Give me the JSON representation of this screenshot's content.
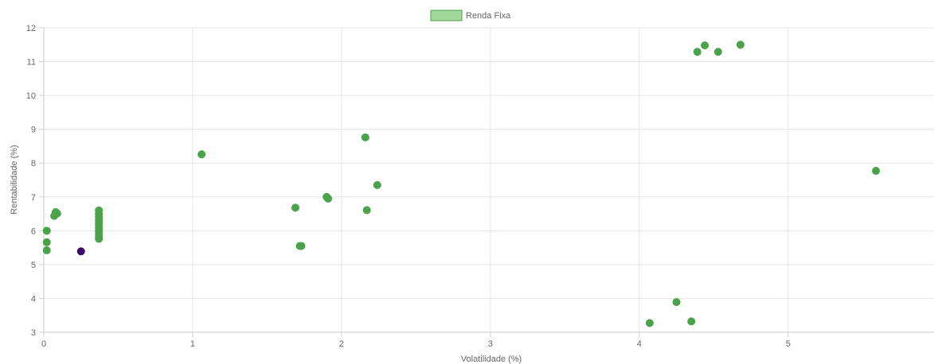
{
  "chart_data": {
    "type": "scatter",
    "xlabel": "Volatilidade (%)",
    "ylabel": "Rentabilidade (%)",
    "xlim": [
      0,
      5.98
    ],
    "ylim": [
      3,
      12
    ],
    "x_ticks": [
      "0",
      "1",
      "2",
      "3",
      "4",
      "5"
    ],
    "y_ticks": [
      "3",
      "4",
      "5",
      "6",
      "7",
      "8",
      "9",
      "10",
      "11",
      "12"
    ],
    "grid": true,
    "legend": {
      "position": "top-center"
    },
    "series": [
      {
        "name": "Renda Fixa",
        "color": "#4aa34a",
        "legend_fill": "#a3d69a",
        "points": [
          {
            "x": 0.02,
            "y": 6.0
          },
          {
            "x": 0.02,
            "y": 5.66
          },
          {
            "x": 0.02,
            "y": 5.42
          },
          {
            "x": 0.07,
            "y": 6.44
          },
          {
            "x": 0.08,
            "y": 6.55
          },
          {
            "x": 0.09,
            "y": 6.51
          },
          {
            "x": 0.37,
            "y": 6.6
          },
          {
            "x": 0.37,
            "y": 6.5
          },
          {
            "x": 0.37,
            "y": 6.4
          },
          {
            "x": 0.37,
            "y": 6.3
          },
          {
            "x": 0.37,
            "y": 6.2
          },
          {
            "x": 0.37,
            "y": 6.1
          },
          {
            "x": 0.37,
            "y": 6.0
          },
          {
            "x": 0.37,
            "y": 5.9
          },
          {
            "x": 0.37,
            "y": 5.82
          },
          {
            "x": 0.37,
            "y": 5.76
          },
          {
            "x": 1.06,
            "y": 8.26
          },
          {
            "x": 1.69,
            "y": 6.68
          },
          {
            "x": 1.72,
            "y": 5.55
          },
          {
            "x": 1.73,
            "y": 5.55
          },
          {
            "x": 1.9,
            "y": 7.0
          },
          {
            "x": 1.91,
            "y": 6.95
          },
          {
            "x": 2.16,
            "y": 8.76
          },
          {
            "x": 2.17,
            "y": 6.61
          },
          {
            "x": 2.24,
            "y": 7.35
          },
          {
            "x": 4.07,
            "y": 3.27
          },
          {
            "x": 4.25,
            "y": 3.89
          },
          {
            "x": 4.35,
            "y": 3.32
          },
          {
            "x": 4.39,
            "y": 11.29
          },
          {
            "x": 4.44,
            "y": 11.48
          },
          {
            "x": 4.53,
            "y": 11.29
          },
          {
            "x": 4.68,
            "y": 11.5
          },
          {
            "x": 5.59,
            "y": 7.77
          }
        ]
      },
      {
        "color": "#3d0a6b",
        "points": [
          {
            "x": 0.25,
            "y": 5.39
          }
        ]
      }
    ]
  }
}
